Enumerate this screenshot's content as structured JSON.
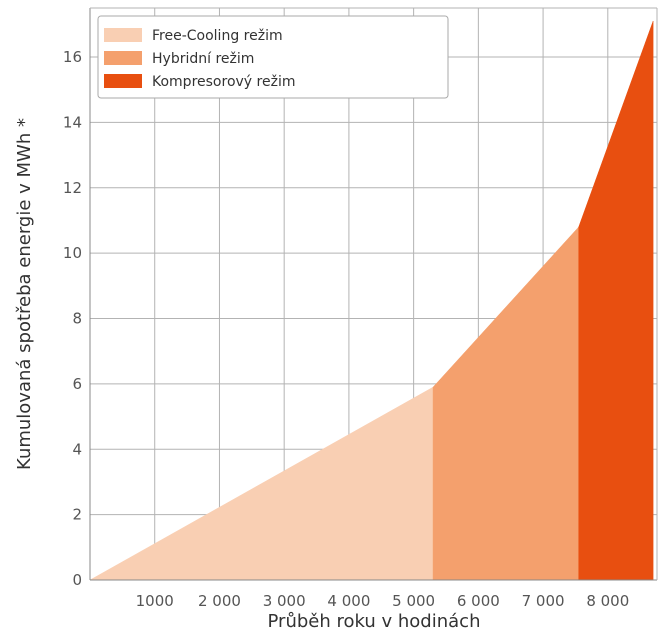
{
  "chart_data": {
    "type": "area",
    "xlabel": "Průběh roku v hodinách",
    "ylabel": "Kumulovaná spotřeba energie v MWh *",
    "xlim": [
      0,
      8760
    ],
    "ylim": [
      0,
      17.5
    ],
    "x_ticks": [
      1000,
      2000,
      3000,
      4000,
      5000,
      6000,
      7000,
      8000
    ],
    "x_tick_labels": [
      "1000",
      "2 000",
      "3 000",
      "4 000",
      "5 000",
      "6 000",
      "7 000",
      "8 000"
    ],
    "y_ticks": [
      0,
      2,
      4,
      6,
      8,
      10,
      12,
      14,
      16
    ],
    "y_tick_labels": [
      "0",
      "2",
      "4",
      "6",
      "8",
      "10",
      "12",
      "14",
      "16"
    ],
    "grid": true,
    "legend_position": "top-left",
    "series": [
      {
        "name": "Free-Cooling režim",
        "color": "#f9cfb3",
        "points": [
          [
            0,
            0
          ],
          [
            5300,
            5.9
          ]
        ]
      },
      {
        "name": "Hybridní režim",
        "color": "#f4a06d",
        "points": [
          [
            5300,
            5.9
          ],
          [
            7550,
            10.8
          ]
        ]
      },
      {
        "name": "Kompresorový režim",
        "color": "#e84f10",
        "points": [
          [
            7550,
            10.8
          ],
          [
            8700,
            17.1
          ]
        ]
      }
    ]
  }
}
